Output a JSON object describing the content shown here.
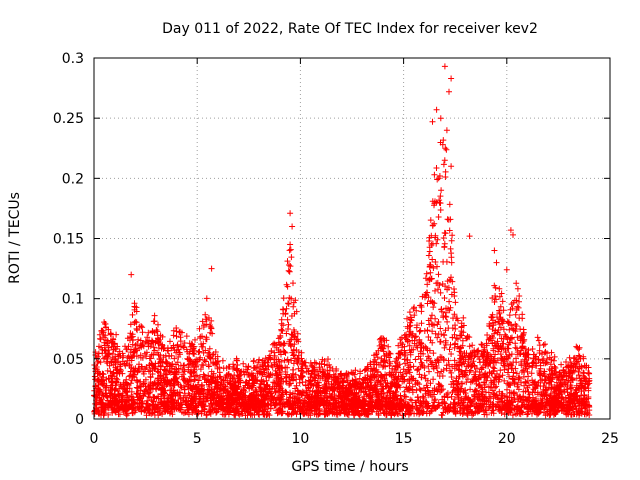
{
  "chart_data": {
    "type": "scatter",
    "title": "Day 011 of 2022, Rate Of TEC Index for receiver kev2",
    "xlabel": "GPS time / hours",
    "ylabel": "ROTI / TECUs",
    "xlim": [
      0,
      25
    ],
    "ylim": [
      0,
      0.3
    ],
    "xticks": [
      "0",
      "5",
      "10",
      "15",
      "20",
      "25"
    ],
    "yticks": [
      "0",
      "0.05",
      "0.1",
      "0.15",
      "0.2",
      "0.25",
      "0.3"
    ],
    "grid": true,
    "marker": "plus",
    "color": "#ff0000",
    "x_range_of_data": [
      0,
      24
    ],
    "envelope": [
      [
        0.0,
        0.04
      ],
      [
        0.5,
        0.08
      ],
      [
        1.0,
        0.06
      ],
      [
        1.5,
        0.05
      ],
      [
        2.0,
        0.09
      ],
      [
        2.5,
        0.06
      ],
      [
        3.0,
        0.08
      ],
      [
        3.5,
        0.05
      ],
      [
        4.0,
        0.07
      ],
      [
        4.5,
        0.06
      ],
      [
        5.0,
        0.06
      ],
      [
        5.5,
        0.1
      ],
      [
        6.0,
        0.04
      ],
      [
        6.5,
        0.04
      ],
      [
        7.0,
        0.04
      ],
      [
        7.5,
        0.04
      ],
      [
        8.0,
        0.04
      ],
      [
        8.5,
        0.05
      ],
      [
        9.0,
        0.06
      ],
      [
        9.5,
        0.14
      ],
      [
        10.0,
        0.05
      ],
      [
        10.5,
        0.04
      ],
      [
        11.0,
        0.04
      ],
      [
        11.5,
        0.04
      ],
      [
        12.0,
        0.03
      ],
      [
        12.5,
        0.03
      ],
      [
        13.0,
        0.03
      ],
      [
        13.5,
        0.04
      ],
      [
        14.0,
        0.07
      ],
      [
        14.5,
        0.04
      ],
      [
        15.0,
        0.07
      ],
      [
        15.5,
        0.09
      ],
      [
        16.0,
        0.1
      ],
      [
        16.5,
        0.2
      ],
      [
        17.0,
        0.25
      ],
      [
        17.5,
        0.1
      ],
      [
        18.0,
        0.07
      ],
      [
        18.5,
        0.05
      ],
      [
        19.0,
        0.06
      ],
      [
        19.5,
        0.12
      ],
      [
        20.0,
        0.07
      ],
      [
        20.5,
        0.11
      ],
      [
        21.0,
        0.05
      ],
      [
        21.5,
        0.06
      ],
      [
        22.0,
        0.05
      ],
      [
        22.5,
        0.04
      ],
      [
        23.0,
        0.04
      ],
      [
        23.5,
        0.06
      ],
      [
        24.0,
        0.03
      ]
    ],
    "spikes": [
      [
        9.5,
        0.171
      ],
      [
        9.6,
        0.16
      ],
      [
        9.5,
        0.145
      ],
      [
        9.45,
        0.128
      ],
      [
        9.55,
        0.1
      ],
      [
        17.0,
        0.293
      ],
      [
        17.3,
        0.283
      ],
      [
        17.2,
        0.272
      ],
      [
        16.6,
        0.257
      ],
      [
        16.8,
        0.25
      ],
      [
        16.4,
        0.247
      ],
      [
        17.1,
        0.24
      ],
      [
        16.9,
        0.228
      ],
      [
        16.7,
        0.2
      ],
      [
        16.6,
        0.18
      ],
      [
        20.2,
        0.157
      ],
      [
        20.3,
        0.153
      ],
      [
        19.4,
        0.14
      ],
      [
        19.5,
        0.13
      ],
      [
        17.3,
        0.21
      ],
      [
        5.7,
        0.125
      ],
      [
        1.8,
        0.12
      ],
      [
        20.0,
        0.124
      ],
      [
        18.2,
        0.152
      ]
    ]
  }
}
